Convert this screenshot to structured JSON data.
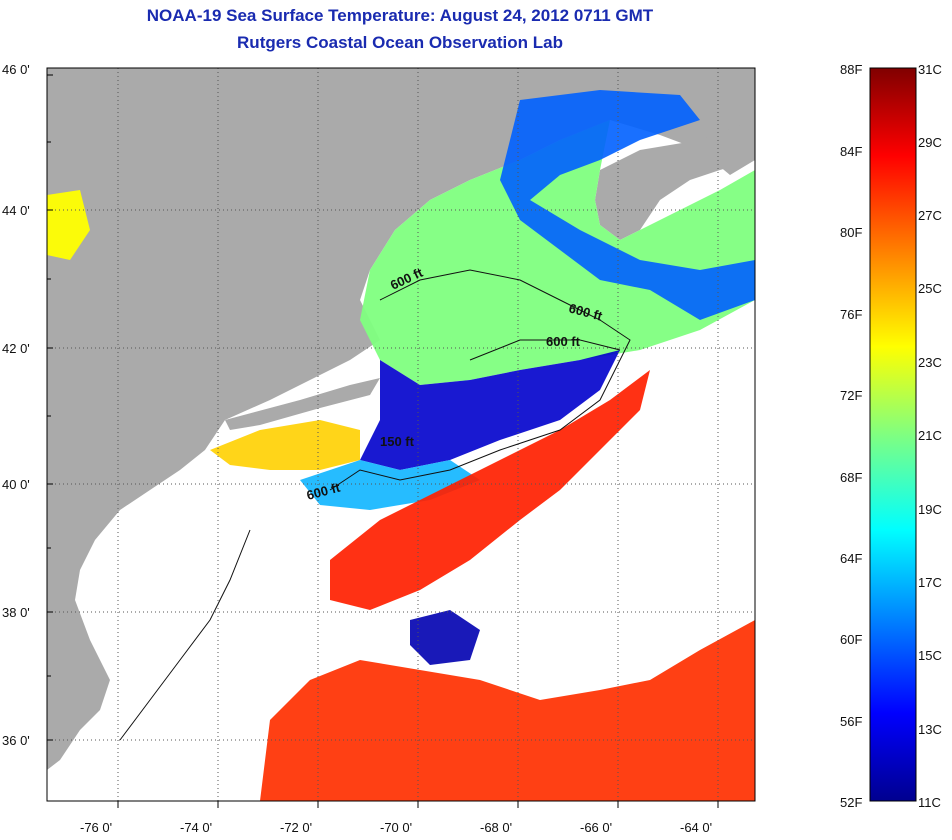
{
  "title": "NOAA-19 Sea Surface Temperature:  August 24, 2012 0711 GMT",
  "subtitle": "Rutgers Coastal Ocean Observation Lab",
  "lat_labels": [
    "46 0'",
    "44 0'",
    "42 0'",
    "40 0'",
    "38 0'",
    "36 0'"
  ],
  "lon_labels": [
    "-76 0'",
    "-74 0'",
    "-72 0'",
    "-70 0'",
    "-68 0'",
    "-66 0'",
    "-64 0'"
  ],
  "contour_labels": [
    "600 ft",
    "600 ft",
    "600 ft",
    "150 ft",
    "600 ft"
  ],
  "colorbar": {
    "fahrenheit": [
      "88F",
      "84F",
      "80F",
      "76F",
      "72F",
      "68F",
      "64F",
      "60F",
      "56F",
      "52F"
    ],
    "celsius": [
      "31C",
      "29C",
      "27C",
      "25C",
      "23C",
      "21C",
      "19C",
      "17C",
      "15C",
      "13C",
      "11C"
    ],
    "colors": [
      "#00008f",
      "#0000ff",
      "#0080ff",
      "#00ffff",
      "#80ff80",
      "#ffff00",
      "#ff8000",
      "#ff0000",
      "#800000"
    ]
  },
  "colors": {
    "land": "#aaaaaa",
    "cloud": "#ffffff",
    "title": "#1a2bb0"
  }
}
